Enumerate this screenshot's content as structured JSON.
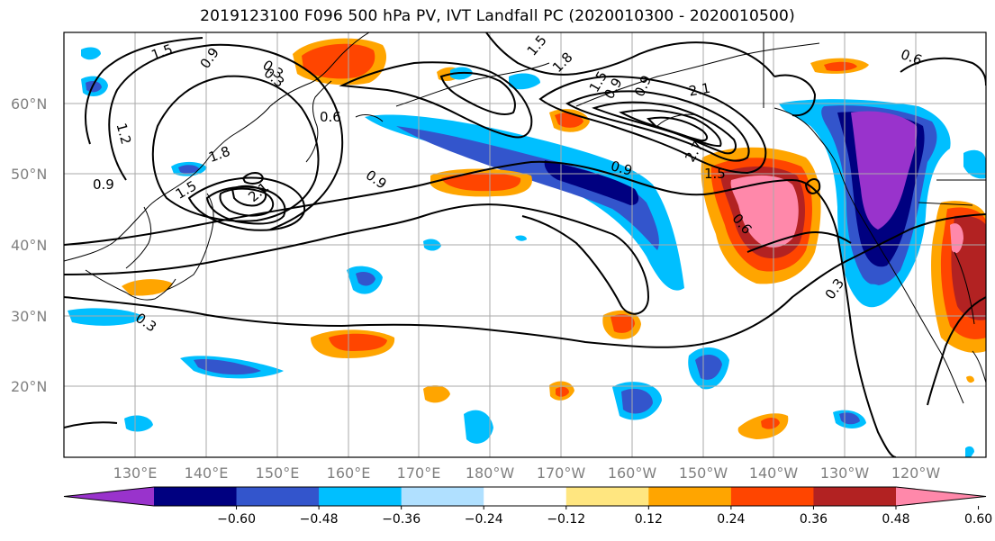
{
  "title": "2019123100 F096 500 hPa PV, IVT Landfall PC (2020010300 - 2020010500)",
  "lat_labels": [
    "20°N",
    "30°N",
    "40°N",
    "50°N",
    "60°N"
  ],
  "lon_labels": [
    "130°E",
    "140°E",
    "150°E",
    "160°E",
    "170°E",
    "180°W",
    "170°W",
    "160°W",
    "150°W",
    "140°W",
    "130°W",
    "120°W"
  ],
  "colorbar": {
    "ticks": [
      "−0.60",
      "−0.48",
      "−0.36",
      "−0.24",
      "−0.12",
      "0.12",
      "0.24",
      "0.36",
      "0.48",
      "0.60"
    ],
    "colors": [
      "#9933cc",
      "#000080",
      "#3355cc",
      "#00bfff",
      "#b0e0ff",
      "#ffffff",
      "#ffe680",
      "#ffa500",
      "#ff4500",
      "#b22222",
      "#ff88aa"
    ]
  },
  "contour_labels": [
    "1.5",
    "0.9",
    "0.3",
    "1.2",
    "0.6",
    "1.8",
    "0.9",
    "1.5",
    "2.1",
    "0.9",
    "0.9",
    "0.3",
    "1.5",
    "0.9",
    "1.8",
    "2.1",
    "1.5",
    "0.6",
    "0.9",
    "0.3",
    "0.6",
    "0.3",
    "1.5",
    "2.7"
  ],
  "colors": {
    "contour": "#000000",
    "coast": "#000000",
    "grid": "#aaaaaa",
    "frame": "#000000"
  }
}
